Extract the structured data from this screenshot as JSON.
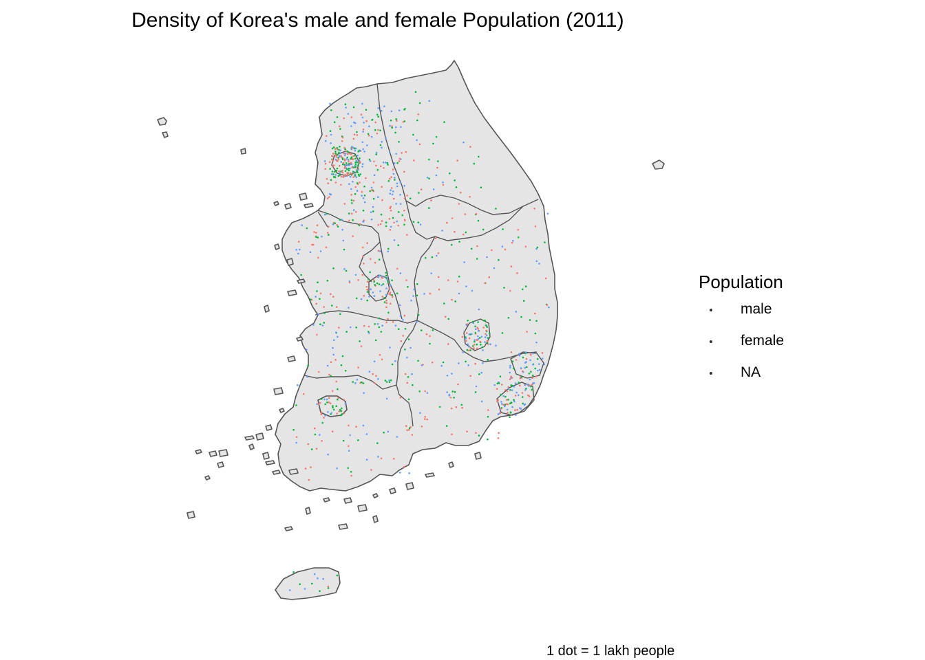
{
  "title": "Density of Korea's male and female Population (2011)",
  "legend": {
    "title": "Population",
    "items": [
      {
        "label": "male",
        "color": "#333333"
      },
      {
        "label": "female",
        "color": "#333333"
      },
      {
        "label": "NA",
        "color": "#333333"
      }
    ]
  },
  "caption": "1 dot = 1 lakh people",
  "colors": {
    "land": "#e5e5e5",
    "border": "#555555",
    "male_dots": "#f8766d",
    "female_dots": "#619cff",
    "na_dots": "#00ba38"
  }
}
